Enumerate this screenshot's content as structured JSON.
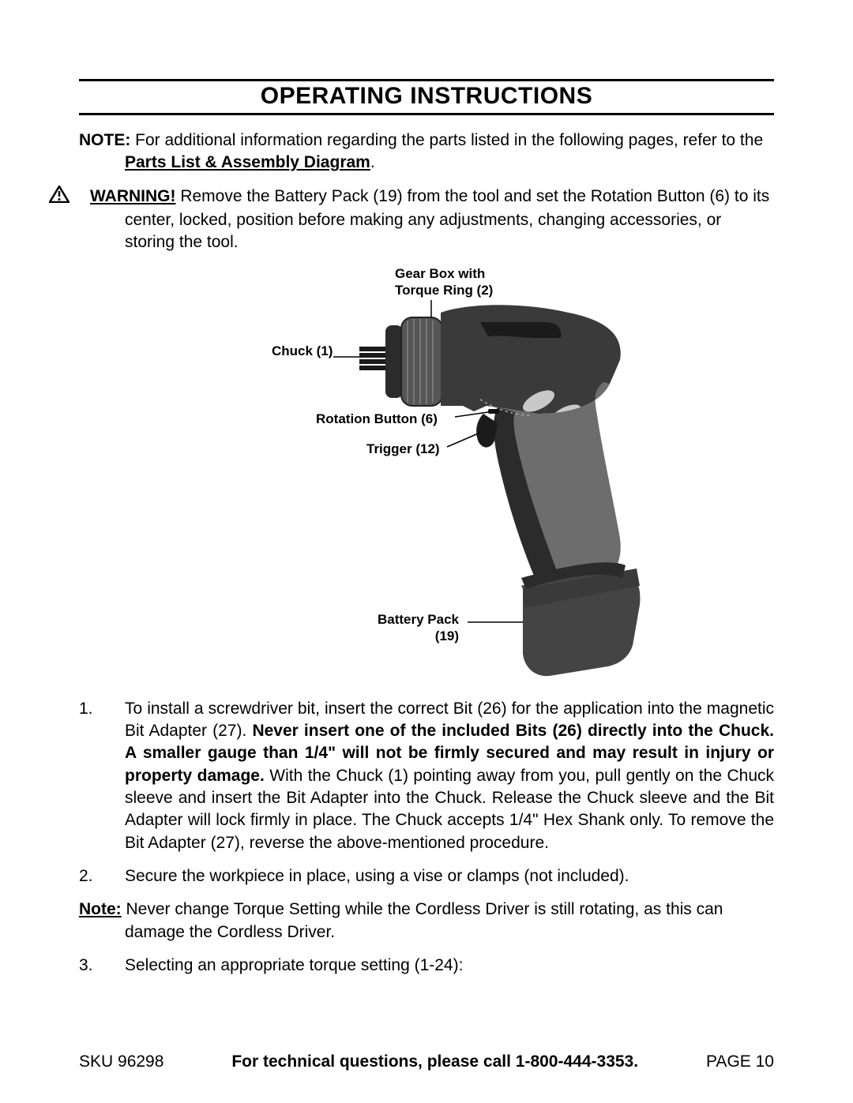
{
  "title": "OPERATING INSTRUCTIONS",
  "note": {
    "label": "NOTE:",
    "text": " For additional information regarding the parts listed in the following pages, refer to the ",
    "link": "Parts List & Assembly Diagram",
    "tail": "."
  },
  "warning": {
    "label": "WARNING!",
    "text": "  Remove the Battery Pack (19) from the tool and set the Rotation Button (6) to its center, locked, position before making any adjustments, changing accessories, or storing the tool."
  },
  "diagram": {
    "labels": {
      "gearbox": "Gear Box with\nTorque Ring (2)",
      "chuck": "Chuck (1)",
      "rotation": "Rotation Button (6)",
      "trigger": "Trigger (12)",
      "battery": "Battery Pack\n(19)"
    },
    "colors": {
      "body_dark": "#3a3a3a",
      "body_mid": "#555555",
      "body_light": "#6d6d6d",
      "grip_dark": "#2b2b2b",
      "chuck": "#1b1b1b",
      "vent": "#c8c8c8",
      "battery": "#444444"
    }
  },
  "steps": [
    {
      "num": "1.",
      "segments": [
        {
          "t": "To install a screwdriver bit, insert the correct Bit (26) for the application into the magnetic Bit Adapter (27).  ",
          "b": false
        },
        {
          "t": "Never insert one of the included Bits (26) directly into the Chuck.  A smaller gauge than 1/4\" will not be firmly secured and may result in injury or property damage.",
          "b": true
        },
        {
          "t": "  With the Chuck (1) pointing away from you, pull gently on the Chuck sleeve and insert the Bit Adapter into the Chuck.  Release the Chuck sleeve and the Bit Adapter will lock firmly in place.  The Chuck accepts 1/4\" Hex Shank only.  To remove the Bit Adapter (27), reverse the above-mentioned procedure.",
          "b": false
        }
      ]
    },
    {
      "num": "2.",
      "segments": [
        {
          "t": "Secure the workpiece in place, using a vise or clamps (not included).",
          "b": false
        }
      ]
    }
  ],
  "note2": {
    "label": "Note:",
    "text": "  Never change Torque Setting while the Cordless Driver is still rotating, as this can damage the Cordless Driver."
  },
  "step3": {
    "num": "3.",
    "text": "Selecting an appropriate torque setting (1-24):"
  },
  "footer": {
    "sku": "SKU 96298",
    "mid": "For technical questions, please call 1-800-444-3353.",
    "page": "PAGE 10"
  }
}
